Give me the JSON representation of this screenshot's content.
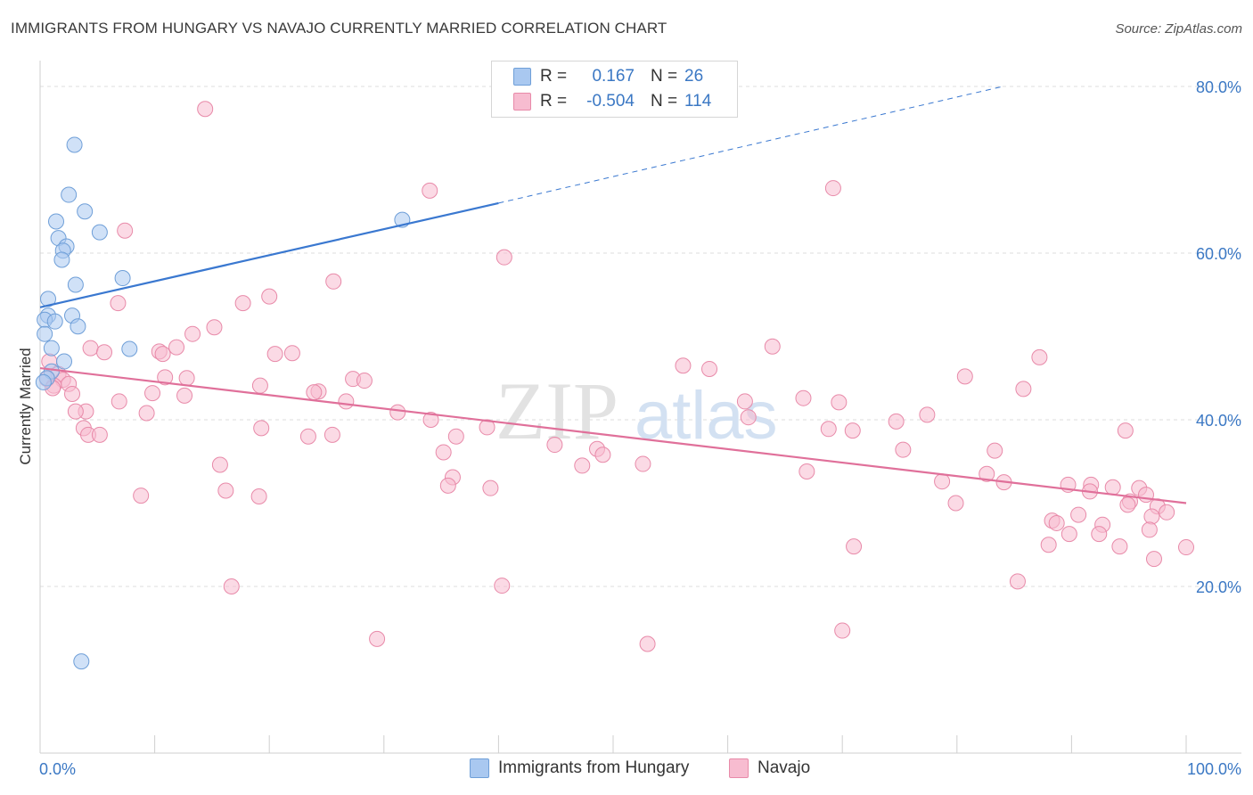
{
  "title": "IMMIGRANTS FROM HUNGARY VS NAVAJO CURRENTLY MARRIED CORRELATION CHART",
  "source": "Source: ZipAtlas.com",
  "watermark": {
    "zip": "ZIP",
    "atlas": "atlas"
  },
  "legend": {
    "rows": [
      {
        "r_label": "R =",
        "r_value": "0.167",
        "n_label": "N =",
        "n_value": "26",
        "color": "#a9c8f0",
        "stroke": "#6f9fd8"
      },
      {
        "r_label": "R =",
        "r_value": "-0.504",
        "n_label": "N =",
        "n_value": "114",
        "color": "#f7bcd0",
        "stroke": "#e88aa9"
      }
    ]
  },
  "bottom_legend": {
    "hungary": "Immigrants from Hungary",
    "navajo": "Navajo"
  },
  "chart_data": {
    "type": "scatter",
    "title": "IMMIGRANTS FROM HUNGARY VS NAVAJO CURRENTLY MARRIED CORRELATION CHART",
    "xlabel": "",
    "ylabel": "Currently Married",
    "xlim": [
      0,
      100
    ],
    "ylim": [
      0,
      80
    ],
    "x_tick_labels": [
      "0.0%",
      "100.0%"
    ],
    "y_ticks": [
      20,
      40,
      60,
      80
    ],
    "y_tick_labels": [
      "20.0%",
      "40.0%",
      "60.0%",
      "80.0%"
    ],
    "grid": true,
    "legend_position": "top-center",
    "series": [
      {
        "name": "Immigrants from Hungary",
        "color": "#a9c8f0",
        "stroke": "#6f9fd8",
        "line_color": "#3a78d0",
        "trend": {
          "x0": 0,
          "y0": 53.5,
          "x1": 40,
          "y1": 66.0,
          "dash_to_x": 84,
          "dash_to_y": 80
        },
        "points": [
          [
            3.0,
            73.0
          ],
          [
            2.5,
            67.0
          ],
          [
            3.9,
            65.0
          ],
          [
            1.4,
            63.8
          ],
          [
            5.2,
            62.5
          ],
          [
            1.6,
            61.8
          ],
          [
            2.3,
            60.8
          ],
          [
            2.0,
            60.3
          ],
          [
            1.9,
            59.2
          ],
          [
            3.1,
            56.2
          ],
          [
            7.2,
            57.0
          ],
          [
            0.7,
            54.5
          ],
          [
            0.7,
            52.5
          ],
          [
            2.8,
            52.5
          ],
          [
            0.4,
            52.0
          ],
          [
            1.3,
            51.8
          ],
          [
            3.3,
            51.2
          ],
          [
            0.4,
            50.3
          ],
          [
            1.0,
            48.6
          ],
          [
            7.8,
            48.5
          ],
          [
            2.1,
            47.0
          ],
          [
            1.0,
            45.8
          ],
          [
            0.6,
            45.0
          ],
          [
            31.6,
            64.0
          ],
          [
            3.6,
            11.0
          ],
          [
            0.3,
            44.5
          ]
        ]
      },
      {
        "name": "Navajo",
        "color": "#f7bcd0",
        "stroke": "#e88aa9",
        "line_color": "#e0709a",
        "trend": {
          "x0": 0,
          "y0": 46.2,
          "x1": 100,
          "y1": 30.0
        },
        "points": [
          [
            14.4,
            77.3
          ],
          [
            34.0,
            67.5
          ],
          [
            69.2,
            67.8
          ],
          [
            7.4,
            62.7
          ],
          [
            40.5,
            59.5
          ],
          [
            25.6,
            56.6
          ],
          [
            20.0,
            54.8
          ],
          [
            17.7,
            54.0
          ],
          [
            6.8,
            54.0
          ],
          [
            15.2,
            51.1
          ],
          [
            13.3,
            50.3
          ],
          [
            63.9,
            48.8
          ],
          [
            4.4,
            48.6
          ],
          [
            11.9,
            48.7
          ],
          [
            10.4,
            48.2
          ],
          [
            5.6,
            48.1
          ],
          [
            10.7,
            47.9
          ],
          [
            22.0,
            48.0
          ],
          [
            20.5,
            47.9
          ],
          [
            87.2,
            47.5
          ],
          [
            56.1,
            46.5
          ],
          [
            58.4,
            46.1
          ],
          [
            0.8,
            47.0
          ],
          [
            1.6,
            45.5
          ],
          [
            2.0,
            44.8
          ],
          [
            10.9,
            45.1
          ],
          [
            12.8,
            45.0
          ],
          [
            27.3,
            44.9
          ],
          [
            28.3,
            44.7
          ],
          [
            80.7,
            45.2
          ],
          [
            2.5,
            44.3
          ],
          [
            1.2,
            44.1
          ],
          [
            19.2,
            44.1
          ],
          [
            24.3,
            43.4
          ],
          [
            23.9,
            43.3
          ],
          [
            9.8,
            43.2
          ],
          [
            12.6,
            42.9
          ],
          [
            85.8,
            43.7
          ],
          [
            2.8,
            43.1
          ],
          [
            6.9,
            42.2
          ],
          [
            26.7,
            42.2
          ],
          [
            61.5,
            42.2
          ],
          [
            66.6,
            42.6
          ],
          [
            69.7,
            42.1
          ],
          [
            4.0,
            41.0
          ],
          [
            3.1,
            41.0
          ],
          [
            9.3,
            40.8
          ],
          [
            31.2,
            40.9
          ],
          [
            77.4,
            40.6
          ],
          [
            61.8,
            40.3
          ],
          [
            34.1,
            40.0
          ],
          [
            74.7,
            39.8
          ],
          [
            19.3,
            39.0
          ],
          [
            3.8,
            39.0
          ],
          [
            39.0,
            39.1
          ],
          [
            68.8,
            38.9
          ],
          [
            70.9,
            38.7
          ],
          [
            94.7,
            38.7
          ],
          [
            4.2,
            38.2
          ],
          [
            5.2,
            38.2
          ],
          [
            23.4,
            38.0
          ],
          [
            25.5,
            38.2
          ],
          [
            36.3,
            38.0
          ],
          [
            44.9,
            37.0
          ],
          [
            48.6,
            36.5
          ],
          [
            75.3,
            36.4
          ],
          [
            35.2,
            36.1
          ],
          [
            83.3,
            36.3
          ],
          [
            49.1,
            35.8
          ],
          [
            47.3,
            34.5
          ],
          [
            15.7,
            34.6
          ],
          [
            52.6,
            34.7
          ],
          [
            66.9,
            33.8
          ],
          [
            82.6,
            33.5
          ],
          [
            36.0,
            33.1
          ],
          [
            78.7,
            32.6
          ],
          [
            84.1,
            32.5
          ],
          [
            35.6,
            32.1
          ],
          [
            39.3,
            31.8
          ],
          [
            16.2,
            31.5
          ],
          [
            89.7,
            32.2
          ],
          [
            91.7,
            32.2
          ],
          [
            93.6,
            31.9
          ],
          [
            95.9,
            31.8
          ],
          [
            8.8,
            30.9
          ],
          [
            19.1,
            30.8
          ],
          [
            91.6,
            31.4
          ],
          [
            96.5,
            31.0
          ],
          [
            79.9,
            30.0
          ],
          [
            95.1,
            30.2
          ],
          [
            94.9,
            29.8
          ],
          [
            97.5,
            29.6
          ],
          [
            98.3,
            28.9
          ],
          [
            97.0,
            28.4
          ],
          [
            90.6,
            28.6
          ],
          [
            88.3,
            27.9
          ],
          [
            88.7,
            27.6
          ],
          [
            92.7,
            27.4
          ],
          [
            96.8,
            26.8
          ],
          [
            89.8,
            26.3
          ],
          [
            92.4,
            26.3
          ],
          [
            88.0,
            25.0
          ],
          [
            71.0,
            24.8
          ],
          [
            94.2,
            24.8
          ],
          [
            100.0,
            24.7
          ],
          [
            97.2,
            23.3
          ],
          [
            85.3,
            20.6
          ],
          [
            40.3,
            20.1
          ],
          [
            16.7,
            20.0
          ],
          [
            70.0,
            14.7
          ],
          [
            29.4,
            13.7
          ],
          [
            53.0,
            13.1
          ],
          [
            0.6,
            44.9
          ],
          [
            1.1,
            43.8
          ]
        ]
      }
    ]
  }
}
